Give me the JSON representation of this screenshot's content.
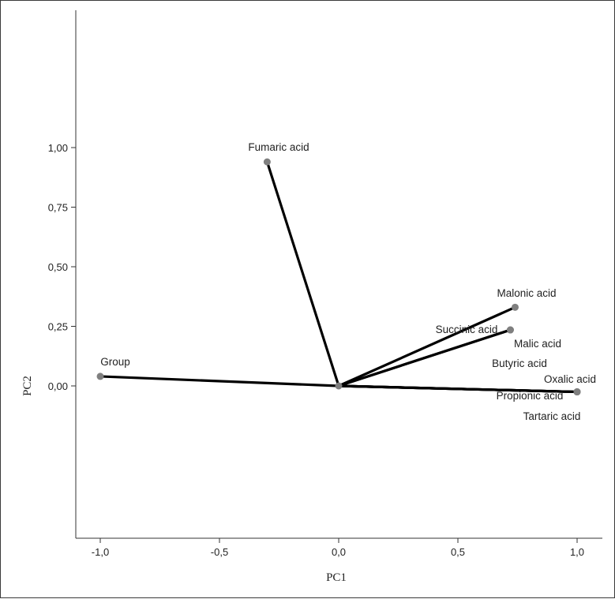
{
  "chart_data": {
    "type": "scatter",
    "subtype": "loading-vectors",
    "xlabel": "PC1",
    "ylabel": "PC2",
    "xlim": [
      -1.1,
      1.1
    ],
    "ylim": [
      -0.6,
      1.58
    ],
    "xticks": [
      {
        "value": -1.0,
        "label": "-1,0"
      },
      {
        "value": -0.5,
        "label": "-0,5"
      },
      {
        "value": 0.0,
        "label": "0,0"
      },
      {
        "value": 0.5,
        "label": "0,5"
      },
      {
        "value": 1.0,
        "label": "1,0"
      }
    ],
    "yticks": [
      {
        "value": 1.0,
        "label": "1,00"
      },
      {
        "value": 0.75,
        "label": "0,75"
      },
      {
        "value": 0.5,
        "label": "0,50"
      },
      {
        "value": 0.25,
        "label": "0,25"
      },
      {
        "value": 0.0,
        "label": "0,00"
      }
    ],
    "line_color": "#000000",
    "marker_color": "#7f7f7f",
    "points": [
      {
        "name": "Fumaric acid",
        "x": -0.3,
        "y": 0.94
      },
      {
        "name": "Malonic acid",
        "x": 0.74,
        "y": 0.33
      },
      {
        "name": "Succinic acid",
        "x": 0.72,
        "y": 0.235
      },
      {
        "name": "Malic acid",
        "x": 0.72,
        "y": 0.235
      },
      {
        "name": "Butyric acid",
        "x": 1.0,
        "y": -0.025
      },
      {
        "name": "Oxalic acid",
        "x": 1.0,
        "y": -0.025
      },
      {
        "name": "Propionic acid",
        "x": 1.0,
        "y": -0.025
      },
      {
        "name": "Tartaric acid",
        "x": 1.0,
        "y": -0.025
      },
      {
        "name": "Group",
        "x": -1.0,
        "y": 0.04
      }
    ]
  }
}
